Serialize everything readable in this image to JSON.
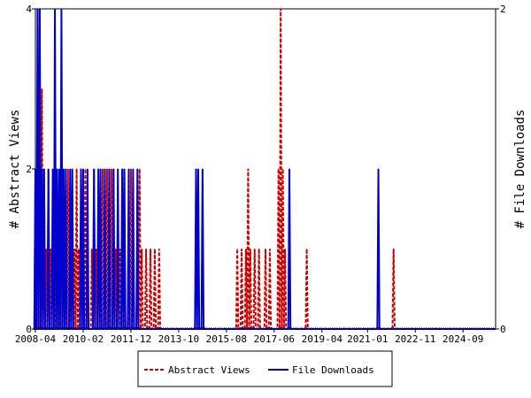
{
  "chart_data": {
    "type": "line",
    "x_ticks": [
      "2008-04",
      "2010-02",
      "2011-12",
      "2013-10",
      "2015-08",
      "2017-06",
      "2019-04",
      "2021-01",
      "2022-11",
      "2024-09"
    ],
    "x_range": [
      "2008-04",
      "2025-12"
    ],
    "ylabel_left": "# Abstract Views",
    "ylabel_right": "# File Downloads",
    "y_left_range": [
      0,
      4
    ],
    "y_right_range": [
      0,
      2
    ],
    "y_left_ticks": [
      "0",
      "2",
      "4"
    ],
    "y_right_ticks": [
      "0",
      "2"
    ],
    "legend_placement": "bottom",
    "grid": false,
    "series": [
      {
        "name": "Abstract Views",
        "axis": "left",
        "color": "#cc0000",
        "style": "dashed",
        "points": [
          [
            "2008-04",
            2
          ],
          [
            "2008-05",
            3
          ],
          [
            "2008-06",
            4
          ],
          [
            "2008-07",
            3
          ],
          [
            "2008-08",
            2
          ],
          [
            "2008-09",
            1
          ],
          [
            "2008-10",
            2
          ],
          [
            "2008-11",
            1
          ],
          [
            "2008-12",
            0
          ],
          [
            "2009-01",
            1
          ],
          [
            "2009-02",
            2
          ],
          [
            "2009-03",
            1
          ],
          [
            "2009-04",
            3
          ],
          [
            "2009-05",
            2
          ],
          [
            "2009-06",
            1
          ],
          [
            "2009-07",
            2
          ],
          [
            "2009-08",
            1
          ],
          [
            "2009-09",
            0
          ],
          [
            "2009-10",
            1
          ],
          [
            "2009-11",
            2
          ],
          [
            "2009-12",
            1
          ],
          [
            "2010-01",
            0
          ],
          [
            "2010-02",
            1
          ],
          [
            "2010-03",
            2
          ],
          [
            "2010-04",
            1
          ],
          [
            "2010-05",
            0
          ],
          [
            "2010-06",
            1
          ],
          [
            "2010-07",
            2
          ],
          [
            "2010-08",
            1
          ],
          [
            "2010-09",
            0
          ],
          [
            "2010-10",
            1
          ],
          [
            "2010-11",
            2
          ],
          [
            "2010-12",
            1
          ],
          [
            "2011-01",
            2
          ],
          [
            "2011-02",
            1
          ],
          [
            "2011-03",
            2
          ],
          [
            "2011-04",
            2
          ],
          [
            "2011-05",
            1
          ],
          [
            "2011-06",
            0
          ],
          [
            "2011-07",
            1
          ],
          [
            "2011-08",
            2
          ],
          [
            "2011-09",
            1
          ],
          [
            "2011-10",
            0
          ],
          [
            "2011-11",
            1
          ],
          [
            "2011-12",
            2
          ],
          [
            "2012-01",
            1
          ],
          [
            "2012-02",
            0
          ],
          [
            "2012-03",
            1
          ],
          [
            "2012-04",
            2
          ],
          [
            "2012-05",
            1
          ],
          [
            "2012-06",
            0
          ],
          [
            "2012-07",
            1
          ],
          [
            "2012-08",
            0
          ],
          [
            "2012-09",
            1
          ],
          [
            "2012-10",
            0
          ],
          [
            "2012-11",
            1
          ],
          [
            "2012-12",
            0
          ],
          [
            "2013-01",
            1
          ],
          [
            "2013-02",
            0
          ],
          [
            "2013-03",
            0
          ],
          [
            "2013-04",
            0
          ],
          [
            "2013-05",
            0
          ],
          [
            "2013-06",
            0
          ],
          [
            "2013-07",
            0
          ],
          [
            "2013-08",
            0
          ],
          [
            "2013-09",
            0
          ],
          [
            "2013-10",
            0
          ],
          [
            "2016-01",
            1
          ],
          [
            "2016-02",
            0
          ],
          [
            "2016-03",
            1
          ],
          [
            "2016-04",
            0
          ],
          [
            "2016-05",
            1
          ],
          [
            "2016-06",
            2
          ],
          [
            "2016-07",
            1
          ],
          [
            "2016-08",
            0
          ],
          [
            "2016-09",
            1
          ],
          [
            "2016-10",
            0
          ],
          [
            "2016-11",
            1
          ],
          [
            "2016-12",
            0
          ],
          [
            "2017-01",
            0
          ],
          [
            "2017-02",
            1
          ],
          [
            "2017-03",
            0
          ],
          [
            "2017-04",
            1
          ],
          [
            "2017-05",
            0
          ],
          [
            "2017-08",
            2
          ],
          [
            "2017-09",
            4
          ],
          [
            "2017-10",
            2
          ],
          [
            "2017-11",
            1
          ],
          [
            "2017-12",
            0
          ],
          [
            "2018-09",
            1
          ],
          [
            "2018-10",
            0
          ],
          [
            "2022-01",
            1
          ],
          [
            "2022-02",
            0
          ]
        ]
      },
      {
        "name": "File Downloads",
        "axis": "right",
        "color": "#0000cc",
        "style": "solid",
        "points": [
          [
            "2008-04",
            1
          ],
          [
            "2008-05",
            2
          ],
          [
            "2008-06",
            2
          ],
          [
            "2008-07",
            1
          ],
          [
            "2008-08",
            1
          ],
          [
            "2008-09",
            0
          ],
          [
            "2008-10",
            1
          ],
          [
            "2008-11",
            0
          ],
          [
            "2008-12",
            1
          ],
          [
            "2009-01",
            2
          ],
          [
            "2009-02",
            1
          ],
          [
            "2009-03",
            1
          ],
          [
            "2009-04",
            2
          ],
          [
            "2009-05",
            1
          ],
          [
            "2009-06",
            1
          ],
          [
            "2009-07",
            0
          ],
          [
            "2009-08",
            1
          ],
          [
            "2009-09",
            1
          ],
          [
            "2009-10",
            0
          ],
          [
            "2010-01",
            1
          ],
          [
            "2010-02",
            1
          ],
          [
            "2010-03",
            0
          ],
          [
            "2010-04",
            1
          ],
          [
            "2010-05",
            0
          ],
          [
            "2010-06",
            0
          ],
          [
            "2010-07",
            1
          ],
          [
            "2010-08",
            0
          ],
          [
            "2010-09",
            1
          ],
          [
            "2010-10",
            1
          ],
          [
            "2010-11",
            0
          ],
          [
            "2010-12",
            1
          ],
          [
            "2011-01",
            0
          ],
          [
            "2011-02",
            1
          ],
          [
            "2011-03",
            0
          ],
          [
            "2011-04",
            1
          ],
          [
            "2011-05",
            0
          ],
          [
            "2011-06",
            1
          ],
          [
            "2011-07",
            0
          ],
          [
            "2011-08",
            1
          ],
          [
            "2011-09",
            1
          ],
          [
            "2011-10",
            0
          ],
          [
            "2011-11",
            1
          ],
          [
            "2011-12",
            0
          ],
          [
            "2012-01",
            1
          ],
          [
            "2012-02",
            0
          ],
          [
            "2012-03",
            1
          ],
          [
            "2012-04",
            0
          ],
          [
            "2014-06",
            1
          ],
          [
            "2014-07",
            1
          ],
          [
            "2014-08",
            0
          ],
          [
            "2014-09",
            1
          ],
          [
            "2014-10",
            0
          ],
          [
            "2018-01",
            1
          ],
          [
            "2018-02",
            0
          ],
          [
            "2021-06",
            1
          ],
          [
            "2021-07",
            0
          ]
        ]
      }
    ]
  }
}
